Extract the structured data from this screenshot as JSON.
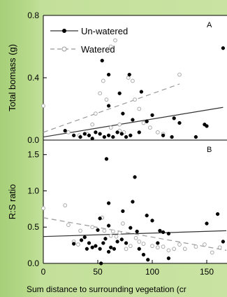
{
  "chart_data": [
    {
      "type": "scatter",
      "panel_label": "A",
      "xlabel": "",
      "ylabel": "Total bomass (g)",
      "xlim": [
        0,
        175
      ],
      "ylim": [
        0,
        0.8
      ],
      "yticks": [
        0,
        0.4,
        0.8
      ],
      "ytick_labels": [
        "0.0",
        "0.4",
        "0.8"
      ],
      "grid": false,
      "legend_position": "top-left",
      "series": [
        {
          "name": "Un-watered",
          "marker": "filled-circle",
          "color": "#000000",
          "points": [
            [
              54,
              0.51
            ],
            [
              60,
              0.42
            ],
            [
              79,
              0.42
            ],
            [
              70,
              0.3
            ],
            [
              90,
              0.31
            ],
            [
              60,
              0.22
            ],
            [
              73,
              0.17
            ],
            [
              100,
              0.16
            ],
            [
              120,
              0.14
            ],
            [
              82,
              0.13
            ],
            [
              95,
              0.12
            ],
            [
              125,
              0.11
            ],
            [
              148,
              0.1
            ],
            [
              150,
              0.09
            ],
            [
              20,
              0.06
            ],
            [
              28,
              0.03
            ],
            [
              34,
              0.02
            ],
            [
              38,
              0.04
            ],
            [
              42,
              0.03
            ],
            [
              45,
              0.01
            ],
            [
              48,
              0.05
            ],
            [
              52,
              0.04
            ],
            [
              56,
              0.02
            ],
            [
              60,
              0.03
            ],
            [
              64,
              0.02
            ],
            [
              68,
              0.05
            ],
            [
              72,
              0.04
            ],
            [
              76,
              0.02
            ],
            [
              80,
              0.03
            ],
            [
              88,
              0.05
            ],
            [
              110,
              0.03
            ],
            [
              118,
              0.02
            ],
            [
              140,
              0.02
            ],
            [
              165,
              0.59
            ]
          ],
          "trendline": {
            "style": "solid",
            "x": [
              0,
              165
            ],
            "y": [
              0.02,
              0.21
            ]
          }
        },
        {
          "name": "Watered",
          "marker": "open-circle",
          "color": "#bbbbbb",
          "points": [
            [
              0,
              0.22
            ],
            [
              23,
              0.05
            ],
            [
              33,
              0.03
            ],
            [
              40,
              0.04
            ],
            [
              45,
              0.1
            ],
            [
              48,
              0.17
            ],
            [
              52,
              0.3
            ],
            [
              55,
              0.38
            ],
            [
              58,
              0.26
            ],
            [
              62,
              0.6
            ],
            [
              66,
              0.64
            ],
            [
              70,
              0.1
            ],
            [
              74,
              0.05
            ],
            [
              78,
              0.4
            ],
            [
              82,
              0.38
            ],
            [
              84,
              0.26
            ],
            [
              88,
              0.2
            ],
            [
              92,
              0.11
            ],
            [
              98,
              0.08
            ],
            [
              105,
              0.05
            ],
            [
              110,
              0.04
            ],
            [
              125,
              0.42
            ],
            [
              62,
              0.08
            ],
            [
              70,
              0.06
            ]
          ],
          "trendline": {
            "style": "dashed",
            "x": [
              0,
              125
            ],
            "y": [
              0.05,
              0.36
            ]
          }
        }
      ]
    },
    {
      "type": "scatter",
      "panel_label": "B",
      "xlabel": "Sum distance to surrounding vegetation (cr",
      "ylabel": "R:S ratio",
      "xlim": [
        0,
        175
      ],
      "ylim": [
        0,
        1.7
      ],
      "xticks": [
        0,
        50,
        100,
        150
      ],
      "xtick_labels": [
        "0",
        "50",
        "100",
        "150"
      ],
      "yticks": [
        0,
        0.5,
        1.0,
        1.5
      ],
      "ytick_labels": [
        "0.0",
        "0.5",
        "1.0",
        "1.5"
      ],
      "grid": false,
      "series": [
        {
          "name": "Un-watered",
          "marker": "filled-circle",
          "color": "#000000",
          "points": [
            [
              58,
              1.44
            ],
            [
              60,
              0.83
            ],
            [
              73,
              0.72
            ],
            [
              95,
              0.66
            ],
            [
              52,
              0.62
            ],
            [
              82,
              0.85
            ],
            [
              84,
              1.19
            ],
            [
              80,
              0.49
            ],
            [
              86,
              0.44
            ],
            [
              100,
              0.59
            ],
            [
              107,
              0.45
            ],
            [
              110,
              0.43
            ],
            [
              115,
              0.41
            ],
            [
              60,
              0.52
            ],
            [
              28,
              0.27
            ],
            [
              35,
              0.32
            ],
            [
              38,
              0.36
            ],
            [
              40,
              0.2
            ],
            [
              42,
              0.28
            ],
            [
              45,
              0.22
            ],
            [
              48,
              0.24
            ],
            [
              50,
              0.46
            ],
            [
              52,
              0.2
            ],
            [
              55,
              0.28
            ],
            [
              57,
              0.34
            ],
            [
              60,
              0.16
            ],
            [
              62,
              0.22
            ],
            [
              65,
              0.2
            ],
            [
              68,
              0.3
            ],
            [
              72,
              0.33
            ],
            [
              76,
              0.28
            ],
            [
              88,
              0.2
            ],
            [
              92,
              0.12
            ],
            [
              96,
              0.05
            ],
            [
              105,
              0.28
            ],
            [
              115,
              0.07
            ],
            [
              150,
              0.55
            ],
            [
              160,
              0.68
            ],
            [
              165,
              0.3
            ],
            [
              53,
              0.0
            ]
          ],
          "trendline": {
            "style": "solid",
            "x": [
              0,
              168
            ],
            "y": [
              0.37,
              0.45
            ]
          }
        },
        {
          "name": "Watered",
          "marker": "open-circle",
          "color": "#bbbbbb",
          "points": [
            [
              0,
              0.76
            ],
            [
              20,
              0.8
            ],
            [
              23,
              0.53
            ],
            [
              28,
              0.3
            ],
            [
              32,
              0.26
            ],
            [
              34,
              0.45
            ],
            [
              45,
              0.5
            ],
            [
              54,
              0.63
            ],
            [
              56,
              0.45
            ],
            [
              62,
              0.38
            ],
            [
              64,
              0.44
            ],
            [
              67,
              0.37
            ],
            [
              70,
              0.42
            ],
            [
              73,
              0.55
            ],
            [
              76,
              0.2
            ],
            [
              80,
              0.24
            ],
            [
              85,
              0.35
            ],
            [
              88,
              0.3
            ],
            [
              92,
              0.27
            ],
            [
              100,
              0.24
            ],
            [
              105,
              0.22
            ],
            [
              110,
              0.23
            ],
            [
              115,
              0.18
            ],
            [
              120,
              0.2
            ],
            [
              125,
              0.26
            ],
            [
              130,
              0.2
            ],
            [
              140,
              0.23
            ],
            [
              148,
              0.26
            ],
            [
              155,
              0.15
            ],
            [
              162,
              0.22
            ]
          ],
          "trendline": {
            "style": "dashed",
            "x": [
              0,
              168
            ],
            "y": [
              0.63,
              0.18
            ]
          }
        }
      ]
    }
  ]
}
